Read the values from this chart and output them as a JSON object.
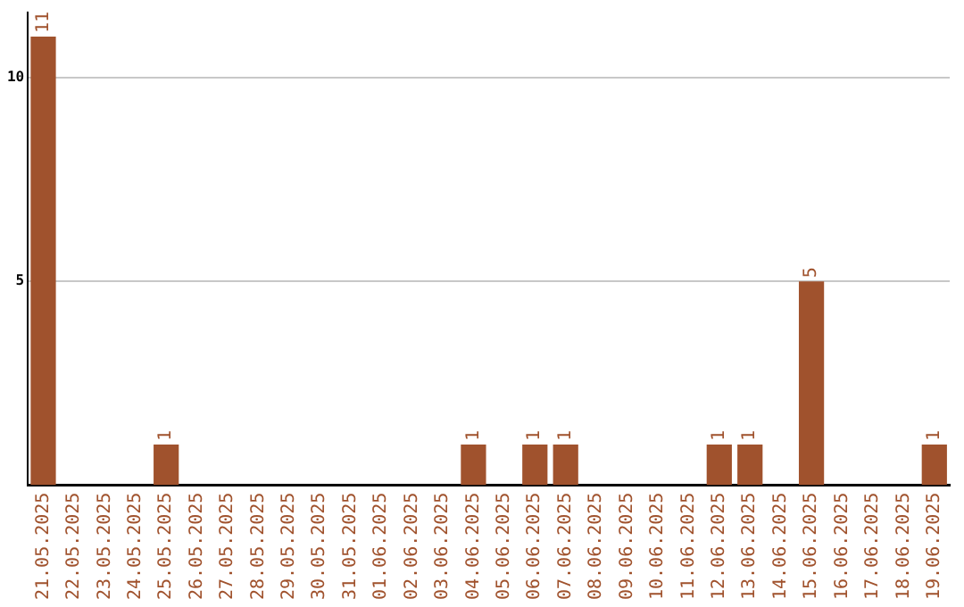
{
  "chart_data": {
    "type": "bar",
    "categories": [
      "21.05.2025",
      "22.05.2025",
      "23.05.2025",
      "24.05.2025",
      "25.05.2025",
      "26.05.2025",
      "27.05.2025",
      "28.05.2025",
      "29.05.2025",
      "30.05.2025",
      "31.05.2025",
      "01.06.2025",
      "02.06.2025",
      "03.06.2025",
      "04.06.2025",
      "05.06.2025",
      "06.06.2025",
      "07.06.2025",
      "08.06.2025",
      "09.06.2025",
      "10.06.2025",
      "11.06.2025",
      "12.06.2025",
      "13.06.2025",
      "14.06.2025",
      "15.06.2025",
      "16.06.2025",
      "17.06.2025",
      "18.06.2025",
      "19.06.2025"
    ],
    "values": [
      11,
      0,
      0,
      0,
      1,
      0,
      0,
      0,
      0,
      0,
      0,
      0,
      0,
      0,
      1,
      0,
      1,
      1,
      0,
      0,
      0,
      0,
      1,
      1,
      0,
      5,
      0,
      0,
      0,
      1
    ],
    "value_labels": [
      "11",
      null,
      null,
      null,
      "1",
      null,
      null,
      null,
      null,
      null,
      null,
      null,
      null,
      null,
      "1",
      null,
      "1",
      "1",
      null,
      null,
      null,
      null,
      "1",
      "1",
      null,
      "5",
      null,
      null,
      null,
      "1"
    ],
    "color": "#a0522d",
    "ylim": [
      0,
      11.6
    ],
    "yticks": [
      5,
      10
    ],
    "grid": "y",
    "legend": false
  }
}
